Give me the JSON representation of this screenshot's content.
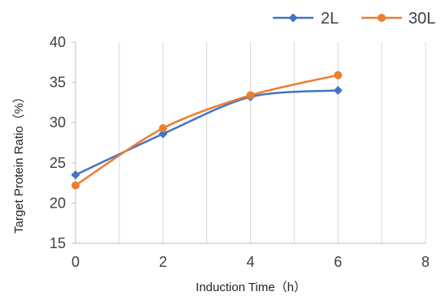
{
  "chart_data": {
    "type": "line",
    "title": "",
    "xlabel": "Induction Time（h）",
    "ylabel": "Target Protein Ratio（%）",
    "xlim": [
      0,
      8
    ],
    "ylim": [
      15,
      40
    ],
    "x_ticks": [
      "0",
      "2",
      "4",
      "6",
      "8"
    ],
    "y_ticks": [
      "15",
      "20",
      "25",
      "30",
      "35",
      "40"
    ],
    "grid": "vertical",
    "legend_position": "top-right",
    "series": [
      {
        "name": "2L",
        "color": "#4472C4",
        "marker": "diamond",
        "x": [
          0,
          2,
          4,
          6
        ],
        "y": [
          23.5,
          28.6,
          33.2,
          34.0
        ]
      },
      {
        "name": "30L",
        "color": "#ED7D31",
        "marker": "circle",
        "x": [
          0,
          2,
          4,
          6
        ],
        "y": [
          22.2,
          29.3,
          33.4,
          35.9
        ]
      }
    ]
  }
}
